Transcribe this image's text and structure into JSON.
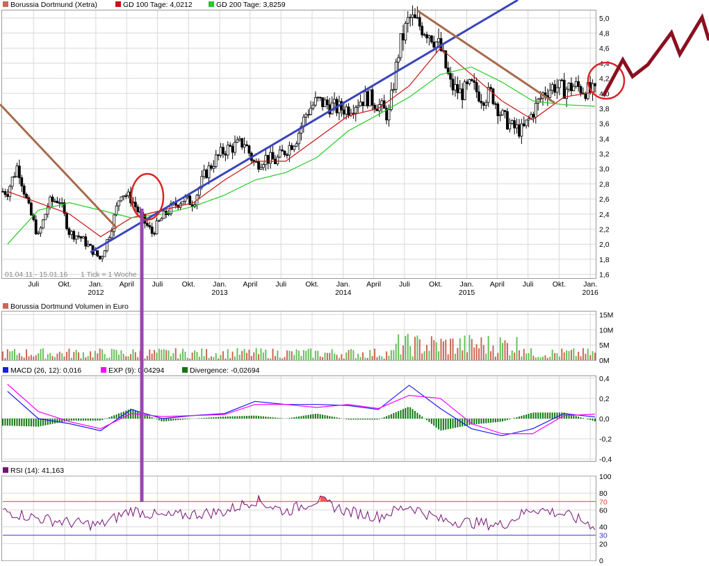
{
  "colors": {
    "background": "#ffffff",
    "grid": "#d8d8d8",
    "price_candle": "#000000",
    "gd100": "#cc1111",
    "gd200": "#22cc22",
    "volume_up": "#66c05a",
    "volume_down": "#cc6655",
    "macd": "#1a1aee",
    "exp": "#ff00ff",
    "divergence": "#117711",
    "rsi": "#771177",
    "rsi_fill": "#ff5555",
    "rsi_70": "#ff3333",
    "rsi_30": "#3333cc",
    "downtrend": "#a86a4a",
    "uptrend": "#3a44bb",
    "marker_circle": "#dd2222",
    "vertical_marker": "#9a45b0",
    "forecast_zigzag": "#8a1020"
  },
  "legend_price": [
    {
      "label": "Borussia Dortmund (Xetra)",
      "color": "#cc6655"
    },
    {
      "label": "GD 100 Tage: 4,0212",
      "color": "#cc1111"
    },
    {
      "label": "GD 200 Tage: 3,8259",
      "color": "#22cc22"
    }
  ],
  "date_range_label": "01.04.11 - 15.01.16",
  "tick_label": "1 Tick = 1 Woche",
  "legend_volume": {
    "label": "Borussia Dortmund Volumen in Euro",
    "color": "#cc6655"
  },
  "legend_macd": [
    {
      "label": "MACD (26, 12): 0,016",
      "color": "#1a1aee"
    },
    {
      "label": "EXP (9): 0,04294",
      "color": "#ff00ff"
    },
    {
      "label": "Divergence: -0,02694",
      "color": "#117711"
    }
  ],
  "legend_rsi": {
    "label": "RSI (14): 41,163",
    "color": "#771177"
  },
  "x_axis": {
    "months": [
      "Juli",
      "Okt.",
      "Jan.",
      "April",
      "Juli",
      "Okt.",
      "Jan.",
      "April",
      "Juli",
      "Okt.",
      "Jan.",
      "April",
      "Juli",
      "Okt.",
      "Jan.",
      "April",
      "Juli",
      "Okt.",
      "Jan."
    ],
    "years": [
      "2012",
      "2013",
      "2014",
      "2015",
      "2016"
    ]
  },
  "chart_data": [
    {
      "type": "line",
      "title": "Borussia Dortmund (Xetra)",
      "x_range": [
        "2011-04-01",
        "2016-01-15"
      ],
      "y_ticks": [
        "1,6",
        "1,8",
        "2,0",
        "2,2",
        "2,4",
        "2,6",
        "2,8",
        "3,0",
        "3,2",
        "3,4",
        "3,6",
        "3,8",
        "4,0",
        "4,2",
        "4,4",
        "4,6",
        "4,8",
        "5,0"
      ],
      "ylim": [
        1.55,
        5.1
      ],
      "series": [
        {
          "name": "Borussia Dortmund (Xetra)",
          "x": [
            "2011-04",
            "2011-05",
            "2011-06",
            "2011-07",
            "2011-08",
            "2011-09",
            "2011-10",
            "2011-11",
            "2011-12",
            "2012-01",
            "2012-02",
            "2012-03",
            "2012-04",
            "2012-05",
            "2012-06",
            "2012-07",
            "2012-08",
            "2012-09",
            "2012-10",
            "2012-11",
            "2012-12",
            "2013-01",
            "2013-02",
            "2013-03",
            "2013-04",
            "2013-05",
            "2013-06",
            "2013-07",
            "2013-08",
            "2013-09",
            "2013-10",
            "2013-11",
            "2013-12",
            "2014-01",
            "2014-02",
            "2014-03",
            "2014-04",
            "2014-05",
            "2014-06",
            "2014-07",
            "2014-08",
            "2014-09",
            "2014-10",
            "2014-11",
            "2014-12",
            "2015-01",
            "2015-02",
            "2015-03",
            "2015-04",
            "2015-05",
            "2015-06",
            "2015-07",
            "2015-08",
            "2015-09",
            "2015-10",
            "2015-11",
            "2015-12",
            "2016-01"
          ],
          "values": [
            2.7,
            3.05,
            2.5,
            2.1,
            2.55,
            2.6,
            2.15,
            2.1,
            1.95,
            1.8,
            2.2,
            2.7,
            2.6,
            2.35,
            2.15,
            2.35,
            2.5,
            2.6,
            2.55,
            2.9,
            3.1,
            3.25,
            3.3,
            3.35,
            3.05,
            3.15,
            3.1,
            3.25,
            3.4,
            3.75,
            3.9,
            3.85,
            3.8,
            3.8,
            3.9,
            3.95,
            3.85,
            3.7,
            4.6,
            5.0,
            4.9,
            4.8,
            4.6,
            4.1,
            4.0,
            4.1,
            3.95,
            4.0,
            3.7,
            3.55,
            3.5,
            3.75,
            4.0,
            4.1,
            4.05,
            4.1,
            4.05,
            4.0
          ]
        },
        {
          "name": "GD 100 Tage",
          "x": [
            "2011-04",
            "2011-07",
            "2011-10",
            "2012-01",
            "2012-04",
            "2012-07",
            "2012-10",
            "2013-01",
            "2013-04",
            "2013-07",
            "2013-10",
            "2014-01",
            "2014-04",
            "2014-07",
            "2014-10",
            "2015-01",
            "2015-04",
            "2015-07",
            "2015-10",
            "2016-01"
          ],
          "values": [
            2.7,
            2.55,
            2.4,
            2.1,
            2.35,
            2.45,
            2.55,
            2.85,
            3.1,
            3.1,
            3.4,
            3.7,
            3.8,
            4.1,
            4.6,
            4.25,
            3.9,
            3.65,
            3.95,
            4.02
          ]
        },
        {
          "name": "GD 200 Tage",
          "x": [
            "2011-04",
            "2011-07",
            "2011-10",
            "2012-01",
            "2012-04",
            "2012-07",
            "2012-10",
            "2013-01",
            "2013-04",
            "2013-07",
            "2013-10",
            "2014-01",
            "2014-04",
            "2014-07",
            "2014-10",
            "2015-01",
            "2015-04",
            "2015-07",
            "2015-10",
            "2016-01"
          ],
          "values": [
            2.0,
            2.45,
            2.55,
            2.45,
            2.35,
            2.4,
            2.5,
            2.65,
            2.85,
            2.95,
            3.15,
            3.5,
            3.72,
            3.95,
            4.25,
            4.35,
            4.15,
            3.9,
            3.85,
            3.83
          ]
        }
      ]
    },
    {
      "type": "bar",
      "title": "Borussia Dortmund Volumen in Euro",
      "y_ticks": [
        "0M",
        "5M",
        "10M",
        "15M"
      ],
      "ylim": [
        0,
        16
      ]
    },
    {
      "type": "line",
      "y_ticks": [
        "-0,4",
        "-0,2",
        "0,0",
        "0,2",
        "0,4"
      ],
      "ylim": [
        -0.42,
        0.42
      ],
      "series": [
        {
          "name": "MACD (26, 12)",
          "x": [
            "2011-04",
            "2011-07",
            "2011-10",
            "2012-01",
            "2012-04",
            "2012-07",
            "2012-10",
            "2013-01",
            "2013-04",
            "2013-07",
            "2013-10",
            "2014-01",
            "2014-04",
            "2014-07",
            "2014-10",
            "2015-01",
            "2015-04",
            "2015-07",
            "2015-10",
            "2016-01"
          ],
          "values": [
            0.27,
            0.0,
            -0.05,
            -0.12,
            0.09,
            0.0,
            0.03,
            0.05,
            0.17,
            0.14,
            0.14,
            0.13,
            0.09,
            0.33,
            0.1,
            -0.1,
            -0.17,
            -0.1,
            0.05,
            0.016
          ]
        },
        {
          "name": "EXP (9)",
          "x": [
            "2011-04",
            "2011-07",
            "2011-10",
            "2012-01",
            "2012-04",
            "2012-07",
            "2012-10",
            "2013-01",
            "2013-04",
            "2013-07",
            "2013-10",
            "2014-01",
            "2014-04",
            "2014-07",
            "2014-10",
            "2015-01",
            "2015-04",
            "2015-07",
            "2015-10",
            "2016-01"
          ],
          "values": [
            0.34,
            0.07,
            -0.03,
            -0.1,
            0.05,
            0.02,
            0.03,
            0.04,
            0.14,
            0.14,
            0.11,
            0.14,
            0.1,
            0.23,
            0.2,
            -0.05,
            -0.15,
            -0.15,
            0.03,
            0.043
          ]
        },
        {
          "name": "Divergence",
          "x": [
            "2011-04",
            "2011-07",
            "2011-10",
            "2012-01",
            "2012-04",
            "2012-07",
            "2012-10",
            "2013-01",
            "2013-04",
            "2013-07",
            "2013-10",
            "2014-01",
            "2014-04",
            "2014-07",
            "2014-10",
            "2015-01",
            "2015-04",
            "2015-07",
            "2015-10",
            "2016-01"
          ],
          "values": [
            -0.07,
            -0.08,
            -0.02,
            -0.02,
            0.1,
            -0.03,
            0.0,
            0.02,
            0.03,
            0.0,
            0.05,
            -0.01,
            -0.01,
            0.12,
            -0.12,
            -0.06,
            -0.03,
            0.06,
            0.06,
            -0.027
          ]
        }
      ]
    },
    {
      "type": "line",
      "y_ticks": [
        "0",
        "20",
        "30",
        "40",
        "60",
        "70",
        "80",
        "100"
      ],
      "ylim": [
        0,
        100
      ],
      "series": [
        {
          "name": "RSI (14)",
          "x": [
            "2011-04",
            "2011-07",
            "2011-10",
            "2012-01",
            "2012-04",
            "2012-07",
            "2012-10",
            "2013-01",
            "2013-04",
            "2013-07",
            "2013-10",
            "2014-01",
            "2014-04",
            "2014-07",
            "2014-10",
            "2015-01",
            "2015-04",
            "2015-07",
            "2015-10",
            "2016-01"
          ],
          "values": [
            58,
            50,
            45,
            42,
            60,
            52,
            55,
            58,
            72,
            58,
            72,
            58,
            52,
            65,
            48,
            45,
            42,
            62,
            55,
            41.163
          ]
        }
      ]
    }
  ]
}
